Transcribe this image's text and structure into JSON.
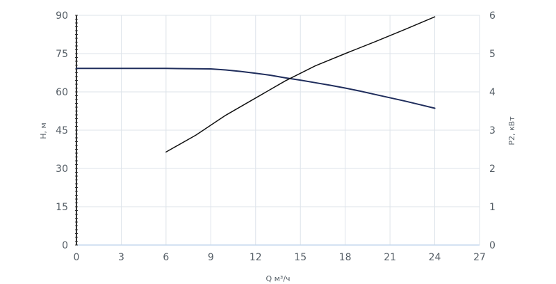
{
  "chart_data": {
    "type": "line",
    "title": "",
    "xlabel": "Q м³/ч",
    "ylabel": "H, м",
    "y2label": "P2, кВт",
    "xlim": [
      0,
      27
    ],
    "ylim": [
      0,
      90
    ],
    "y2lim": [
      0,
      6
    ],
    "x_ticks": [
      "0",
      "3",
      "6",
      "9",
      "12",
      "15",
      "18",
      "21",
      "24",
      "27"
    ],
    "y_ticks": [
      "0",
      "15",
      "30",
      "45",
      "60",
      "75",
      "90"
    ],
    "y2_ticks": [
      "0",
      "1",
      "2",
      "3",
      "4",
      "5",
      "6"
    ],
    "grid": true,
    "series": [
      {
        "axis": "left",
        "color": "#1f2d5c",
        "x": [
          0,
          3,
          6,
          9,
          10,
          11,
          12,
          13,
          14,
          15,
          16,
          17,
          18,
          19,
          20,
          21,
          22,
          23,
          24
        ],
        "y": [
          69.2,
          69.2,
          69.2,
          69.0,
          68.6,
          68.0,
          67.3,
          66.5,
          65.5,
          64.6,
          63.6,
          62.6,
          61.5,
          60.3,
          59.0,
          57.7,
          56.4,
          55.0,
          53.6
        ]
      },
      {
        "axis": "right",
        "color": "#111111",
        "x": [
          6,
          8,
          10,
          12,
          14,
          16,
          18,
          20,
          22,
          24
        ],
        "y": [
          2.43,
          2.87,
          3.39,
          3.84,
          4.29,
          4.68,
          5.0,
          5.31,
          5.63,
          5.96
        ]
      }
    ]
  }
}
